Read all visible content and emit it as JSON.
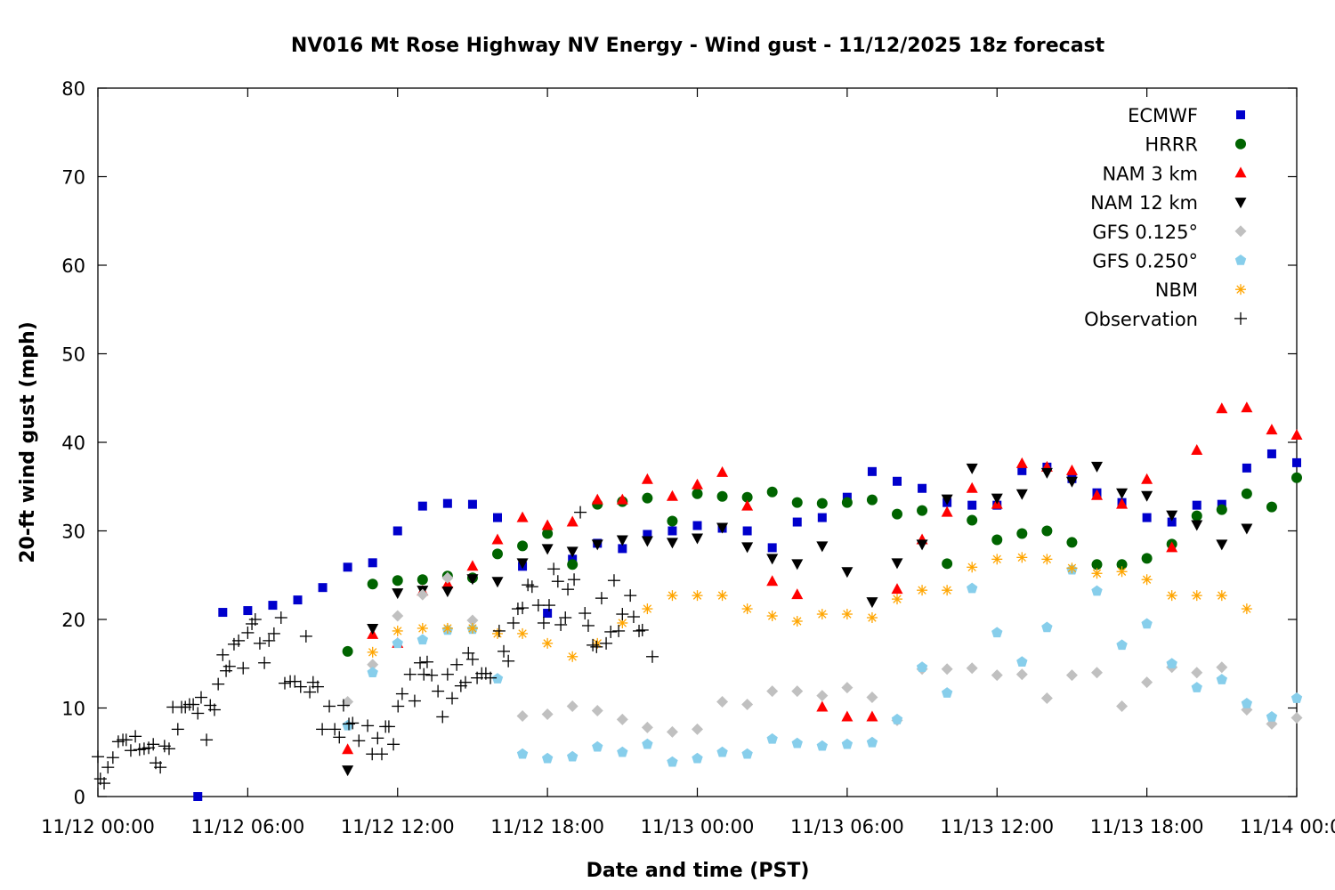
{
  "chart_data": {
    "type": "scatter",
    "title": "NV016 Mt Rose Highway NV Energy - Wind gust - 11/12/2025 18z forecast",
    "xlabel": "Date and time (PST)",
    "ylabel": "20-ft wind gust (mph)",
    "ylim": [
      0,
      80
    ],
    "yticks": [
      0,
      10,
      20,
      30,
      40,
      50,
      60,
      70,
      80
    ],
    "xlim": [
      "11/12 00:00",
      "11/14 00:00"
    ],
    "xticks": [
      "11/12 00:00",
      "11/12 06:00",
      "11/12 12:00",
      "11/12 18:00",
      "11/13 00:00",
      "11/13 06:00",
      "11/13 12:00",
      "11/13 18:00",
      "11/14 00:00"
    ],
    "grid": false,
    "legend_position": "top-right",
    "series": [
      {
        "name": "ECMWF",
        "marker": "square",
        "color": "#0000cc",
        "start": "11/12 04:00",
        "interval_hours": 1,
        "values": [
          0,
          20.8,
          21,
          21.6,
          22.2,
          23.6,
          25.9,
          26.4,
          30,
          32.8,
          33.1,
          33,
          31.5,
          26,
          20.7,
          26.8,
          28.6,
          28,
          29.6,
          30,
          30.6,
          30.3,
          30,
          28.1,
          31,
          31.5,
          33.8,
          36.7,
          35.6,
          34.8,
          33.2,
          32.9,
          32.9,
          36.8,
          37.2,
          35.9,
          34.3,
          33.2,
          31.5,
          31,
          32.9,
          33,
          37.1,
          38.7,
          37.7
        ]
      },
      {
        "name": "HRRR",
        "marker": "circle",
        "color": "#006400",
        "start": "11/12 10:00",
        "interval_hours": 1,
        "values": [
          16.4,
          24,
          24.4,
          24.5,
          24.9,
          24.7,
          27.4,
          28.3,
          29.7,
          26.2,
          33,
          33.3,
          33.7,
          31.1,
          34.2,
          33.9,
          33.8,
          34.4,
          33.2,
          33.1,
          33.2,
          33.5,
          31.9,
          32.3,
          26.3,
          31.2,
          29,
          29.7,
          30,
          28.7,
          26.2,
          26.2,
          26.9,
          28.5,
          31.7,
          32.4,
          34.2,
          32.7,
          36
        ]
      },
      {
        "name": "NAM 3 km",
        "marker": "triangle-up",
        "color": "#ff0000",
        "start": "11/12 10:00",
        "interval_hours": 1,
        "values": [
          5.3,
          18.3,
          17.3,
          23.2,
          24,
          26,
          29,
          31.5,
          30.6,
          31,
          33.5,
          33.5,
          35.8,
          33.9,
          35.2,
          36.6,
          32.8,
          24.3,
          22.8,
          10.1,
          9,
          9,
          23.4,
          29,
          32.1,
          34.8,
          33,
          37.6,
          37.2,
          36.8,
          34,
          33,
          35.8,
          28.1,
          39.1,
          43.8,
          43.9,
          41.4,
          40.8
        ]
      },
      {
        "name": "NAM 12 km",
        "marker": "triangle-down",
        "color": "#000000",
        "start": "11/12 10:00",
        "interval_hours": 1,
        "values": [
          3,
          19,
          23,
          23.3,
          23.2,
          24.6,
          24.3,
          26.4,
          28,
          27.7,
          28.5,
          29,
          28.9,
          28.7,
          29.2,
          30.4,
          28.2,
          26.9,
          26.3,
          28.3,
          25.4,
          22,
          26.4,
          28.5,
          33.6,
          37.1,
          33.7,
          34.2,
          36.6,
          35.6,
          37.3,
          34.3,
          34,
          31.8,
          30.7,
          28.5,
          30.3
        ]
      },
      {
        "name": "GFS 0.125°",
        "marker": "diamond",
        "color": "#c0c0c0",
        "start": "11/12 10:00",
        "interval_hours": 1,
        "values": [
          10.7,
          14.9,
          20.4,
          22.8,
          24.7,
          19.9,
          null,
          9.1,
          9.3,
          10.2,
          9.7,
          8.7,
          7.8,
          7.3,
          7.6,
          10.7,
          10.4,
          11.9,
          11.9,
          11.4,
          12.3,
          11.2,
          8.6,
          14.4,
          14.4,
          14.5,
          13.7,
          13.8,
          11.1,
          13.7,
          14,
          10.2,
          12.9,
          14.6,
          14,
          14.6,
          9.8,
          8.2,
          8.9
        ]
      },
      {
        "name": "GFS 0.250°",
        "marker": "pentagon",
        "color": "#87ceeb",
        "start": "11/12 10:00",
        "interval_hours": 1,
        "values": [
          8,
          14,
          17.3,
          17.7,
          18.8,
          18.9,
          13.3,
          4.8,
          4.3,
          4.5,
          5.6,
          5,
          5.9,
          3.9,
          4.3,
          5,
          4.8,
          6.5,
          6,
          5.7,
          5.9,
          6.1,
          8.7,
          14.6,
          11.7,
          23.5,
          18.5,
          15.2,
          19.1,
          25.6,
          23.2,
          17.1,
          19.5,
          15,
          12.3,
          13.2,
          10.5,
          9,
          11.1
        ]
      },
      {
        "name": "NBM",
        "marker": "asterisk",
        "color": "#ffa500",
        "start": "11/12 11:00",
        "interval_hours": 1,
        "values": [
          16.3,
          18.7,
          19,
          19,
          19,
          18.4,
          18.4,
          17.3,
          15.8,
          17.3,
          19.6,
          21.2,
          22.7,
          22.7,
          22.7,
          21.2,
          20.4,
          19.8,
          20.6,
          20.6,
          20.2,
          22.3,
          23.3,
          23.3,
          25.9,
          26.8,
          27,
          26.8,
          25.8,
          25.2,
          25.4,
          24.5,
          22.7,
          22.7,
          22.7,
          21.2
        ]
      },
      {
        "name": "Observation",
        "marker": "plus",
        "color": "#000000",
        "points": [
          [
            "11/12 00:00",
            4.5
          ],
          [
            "11/12 00:06",
            2
          ],
          [
            "11/12 00:15",
            1.5
          ],
          [
            "11/12 00:24",
            3.3
          ],
          [
            "11/12 00:36",
            4.4
          ],
          [
            "11/12 00:49",
            6.2
          ],
          [
            "11/12 01:00",
            6.4
          ],
          [
            "11/12 01:08",
            6.4
          ],
          [
            "11/12 01:19",
            5.2
          ],
          [
            "11/12 01:30",
            6.8
          ],
          [
            "11/12 01:40",
            5.3
          ],
          [
            "11/12 01:51",
            5.4
          ],
          [
            "11/12 02:02",
            5.5
          ],
          [
            "11/12 02:13",
            5.9
          ],
          [
            "11/12 02:19",
            3.8
          ],
          [
            "11/12 02:30",
            3.3
          ],
          [
            "11/12 02:40",
            5.7
          ],
          [
            "11/12 02:51",
            5.4
          ],
          [
            "11/12 03:00",
            10.1
          ],
          [
            "11/12 03:12",
            7.6
          ],
          [
            "11/12 03:21",
            10.1
          ],
          [
            "11/12 03:30",
            10.1
          ],
          [
            "11/12 03:40",
            10.4
          ],
          [
            "11/12 03:49",
            10.4
          ],
          [
            "11/12 04:00",
            9.4
          ],
          [
            "11/12 04:08",
            11.2
          ],
          [
            "11/12 04:21",
            6.4
          ],
          [
            "11/12 04:30",
            10.3
          ],
          [
            "11/12 04:40",
            9.8
          ],
          [
            "11/12 04:49",
            12.7
          ],
          [
            "11/12 05:00",
            16
          ],
          [
            "11/12 05:08",
            14.2
          ],
          [
            "11/12 05:16",
            14.7
          ],
          [
            "11/12 05:27",
            17.2
          ],
          [
            "11/12 05:38",
            17.6
          ],
          [
            "11/12 05:49",
            14.5
          ],
          [
            "11/12 06:00",
            18.5
          ],
          [
            "11/12 06:10",
            19.5
          ],
          [
            "11/12 06:18",
            20
          ],
          [
            "11/12 06:29",
            17.3
          ],
          [
            "11/12 06:40",
            15.1
          ],
          [
            "11/12 06:51",
            17.6
          ],
          [
            "11/12 07:03",
            18.4
          ],
          [
            "11/12 07:20",
            20.2
          ],
          [
            "11/12 07:29",
            12.8
          ],
          [
            "11/12 07:42",
            13
          ],
          [
            "11/12 07:53",
            13
          ],
          [
            "11/12 08:07",
            12.4
          ],
          [
            "11/12 08:20",
            18.1
          ],
          [
            "11/12 08:29",
            11.8
          ],
          [
            "11/12 08:37",
            12.9
          ],
          [
            "11/12 08:48",
            12.4
          ],
          [
            "11/12 08:59",
            7.6
          ],
          [
            "11/12 09:16",
            10.2
          ],
          [
            "11/12 09:29",
            7.6
          ],
          [
            "11/12 09:40",
            6.7
          ],
          [
            "11/12 09:50",
            10.3
          ],
          [
            "11/12 10:03",
            8.2
          ],
          [
            "11/12 10:12",
            8.3
          ],
          [
            "11/12 10:27",
            6.3
          ],
          [
            "11/12 10:48",
            8
          ],
          [
            "11/12 10:59",
            4.8
          ],
          [
            "11/12 11:12",
            6.6
          ],
          [
            "11/12 11:22",
            4.8
          ],
          [
            "11/12 11:31",
            7.9
          ],
          [
            "11/12 11:39",
            7.9
          ],
          [
            "11/12 11:50",
            5.9
          ],
          [
            "11/12 12:01",
            10.2
          ],
          [
            "11/12 12:11",
            11.6
          ],
          [
            "11/12 12:30",
            13.8
          ],
          [
            "11/12 12:41",
            10.8
          ],
          [
            "11/12 12:54",
            15.1
          ],
          [
            "11/12 13:03",
            13.8
          ],
          [
            "11/12 13:11",
            15.2
          ],
          [
            "11/12 13:22",
            13.7
          ],
          [
            "11/12 13:37",
            11.9
          ],
          [
            "11/12 13:48",
            9
          ],
          [
            "11/12 14:00",
            13.8
          ],
          [
            "11/12 14:11",
            11.1
          ],
          [
            "11/12 14:22",
            14.9
          ],
          [
            "11/12 14:32",
            12.5
          ],
          [
            "11/12 14:43",
            12.9
          ],
          [
            "11/12 14:50",
            16.2
          ],
          [
            "11/12 15:00",
            15.5
          ],
          [
            "11/12 15:11",
            13.4
          ],
          [
            "11/12 15:22",
            13.9
          ],
          [
            "11/12 15:32",
            13.9
          ],
          [
            "11/12 15:43",
            13.4
          ],
          [
            "11/12 16:04",
            18.7
          ],
          [
            "11/12 16:15",
            16.4
          ],
          [
            "11/12 16:26",
            15.3
          ],
          [
            "11/12 16:38",
            19.6
          ],
          [
            "11/12 16:49",
            21.2
          ],
          [
            "11/12 17:00",
            21.3
          ],
          [
            "11/12 17:13",
            23.9
          ],
          [
            "11/12 17:23",
            23.7
          ],
          [
            "11/12 17:38",
            21.6
          ],
          [
            "11/12 17:51",
            19.6
          ],
          [
            "11/12 18:04",
            21.6
          ],
          [
            "11/12 18:15",
            25.7
          ],
          [
            "11/12 18:25",
            24.3
          ],
          [
            "11/12 18:32",
            19.4
          ],
          [
            "11/12 18:43",
            20.2
          ],
          [
            "11/12 18:49",
            23.4
          ],
          [
            "11/12 19:04",
            24.5
          ],
          [
            "11/12 19:19",
            32.1
          ],
          [
            "11/12 19:30",
            20.7
          ],
          [
            "11/12 19:38",
            19.3
          ],
          [
            "11/12 19:49",
            17.1
          ],
          [
            "11/12 19:58",
            16.9
          ],
          [
            "11/12 20:10",
            22.4
          ],
          [
            "11/12 20:21",
            17.3
          ],
          [
            "11/12 20:32",
            18.6
          ],
          [
            "11/12 20:40",
            24.4
          ],
          [
            "11/12 20:51",
            18.7
          ],
          [
            "11/12 21:00",
            20.6
          ],
          [
            "11/12 21:19",
            22.7
          ],
          [
            "11/12 21:27",
            20.3
          ],
          [
            "11/12 21:40",
            18.7
          ],
          [
            "11/12 21:48",
            18.8
          ],
          [
            "11/12 22:12",
            15.8
          ]
        ]
      }
    ]
  }
}
